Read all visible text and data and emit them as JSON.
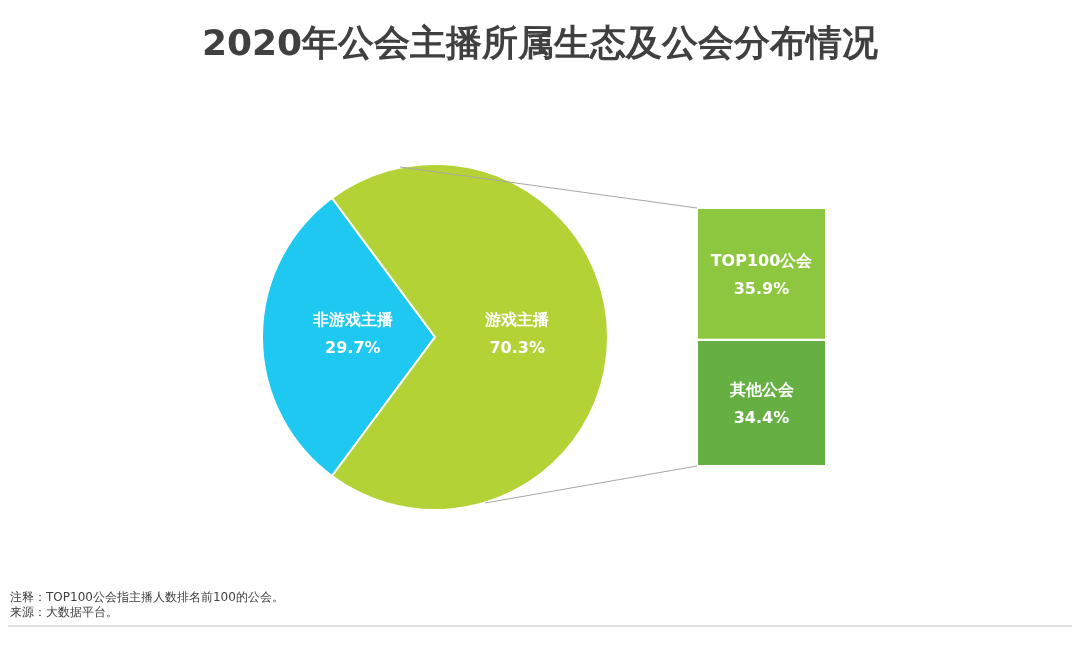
{
  "chart_data": [
    {
      "type": "pie",
      "title": "2020年公会主播所属生态及公会分布情况",
      "categories": [
        "非游戏主播",
        "游戏主播"
      ],
      "values": [
        29.7,
        70.3
      ],
      "colors": [
        "#1ec8f0",
        "#b2d235"
      ],
      "value_labels": [
        "29.7%",
        "70.3%"
      ],
      "annotations": [
        "注释：TOP100公会指主播人数排名前100的公会。",
        "来源：大数据平台。"
      ]
    },
    {
      "type": "bar",
      "stacked": true,
      "categories": [
        null
      ],
      "series": [
        {
          "name": "其他公会",
          "color": "#66b043",
          "values": [
            34.4
          ],
          "value_labels": [
            "34.4%"
          ]
        },
        {
          "name": "TOP100公会",
          "color": "#8dc63f",
          "values": [
            35.9
          ],
          "value_labels": [
            "35.9%"
          ]
        }
      ]
    }
  ]
}
